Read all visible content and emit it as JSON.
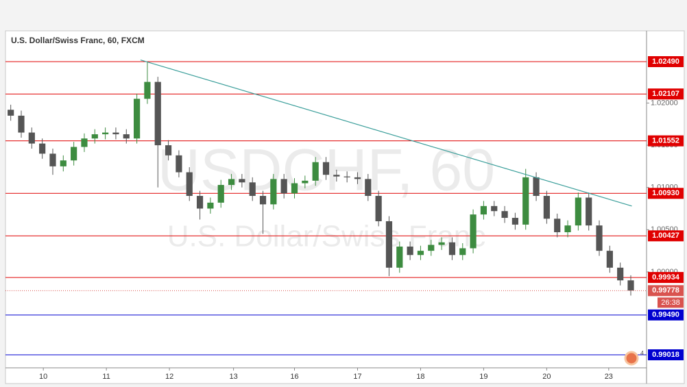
{
  "chart_data": {
    "type": "candlestick",
    "title": "U.S. Dollar/Swiss Franc, 60, FXCM",
    "watermark": [
      "USDCHF, 60",
      "U.S. Dollar/Swiss Franc"
    ],
    "up_color": "#3d8c40",
    "down_color": "#555555",
    "xlim": [
      0,
      61
    ],
    "xticks": [
      {
        "value": 3.6,
        "label": "10"
      },
      {
        "value": 9.6,
        "label": "11"
      },
      {
        "value": 15.6,
        "label": "12"
      },
      {
        "value": 21.7,
        "label": "13"
      },
      {
        "value": 27.5,
        "label": "16"
      },
      {
        "value": 33.5,
        "label": "17"
      },
      {
        "value": 39.5,
        "label": "18"
      },
      {
        "value": 45.5,
        "label": "19"
      },
      {
        "value": 51.5,
        "label": "20"
      },
      {
        "value": 57.4,
        "label": "23"
      }
    ],
    "ylim": [
      0.98864,
      1.02855
    ],
    "yticks": [
      {
        "value": 1.02,
        "label": "1.02000"
      },
      {
        "value": 1.015,
        "label": "1.01500"
      },
      {
        "value": 1.01,
        "label": "1.01000"
      },
      {
        "value": 1.005,
        "label": "1.00500"
      },
      {
        "value": 1.0,
        "label": "1.00000"
      }
    ],
    "open": [
      1.0192,
      1.0185,
      1.0165,
      1.0152,
      1.014,
      1.0125,
      1.0132,
      1.0148,
      1.0158,
      1.0163,
      1.0165,
      1.0163,
      1.0158,
      1.0205,
      1.0225,
      1.015,
      1.0138,
      1.0118,
      1.009,
      1.0075,
      1.0082,
      1.0103,
      1.011,
      1.0106,
      1.009,
      1.008,
      1.011,
      1.0093,
      1.0105,
      1.0108,
      1.013,
      1.0115,
      1.0113,
      1.0112,
      1.011,
      1.009,
      1.006,
      1.0005,
      1.003,
      1.002,
      1.0025,
      1.0032,
      1.0035,
      1.002,
      1.0028,
      1.0068,
      1.0078,
      1.0072,
      1.0064,
      1.0056,
      1.0112,
      1.009,
      1.0063,
      1.0047,
      1.0055,
      1.0088,
      1.0055,
      1.0025,
      1.0005,
      0.999
    ],
    "high": [
      1.0198,
      1.0191,
      1.0171,
      1.0158,
      1.0146,
      1.0138,
      1.0154,
      1.0164,
      1.0169,
      1.0171,
      1.0171,
      1.0169,
      1.0211,
      1.0249,
      1.0231,
      1.0156,
      1.0144,
      1.0124,
      1.0096,
      1.0088,
      1.0109,
      1.0116,
      1.0116,
      1.0112,
      1.0096,
      1.0116,
      1.0116,
      1.0111,
      1.0114,
      1.0136,
      1.0136,
      1.0121,
      1.0119,
      1.0118,
      1.0116,
      1.0096,
      1.0066,
      1.0036,
      1.0036,
      1.0031,
      1.0038,
      1.0041,
      1.0041,
      1.0034,
      1.0074,
      1.0084,
      1.0084,
      1.0078,
      1.007,
      1.0122,
      1.0118,
      1.0096,
      1.0069,
      1.0061,
      1.0094,
      1.0094,
      1.0061,
      1.0031,
      1.0011,
      0.9996
    ],
    "low": [
      1.0179,
      1.0159,
      1.0146,
      1.0134,
      1.0115,
      1.0119,
      1.0126,
      1.0142,
      1.0152,
      1.0157,
      1.0157,
      1.0152,
      1.0152,
      1.0199,
      1.01,
      1.0132,
      1.0112,
      1.0084,
      1.0062,
      1.0069,
      1.0076,
      1.0097,
      1.01,
      1.0084,
      1.0045,
      1.0074,
      1.0087,
      1.0087,
      1.0099,
      1.0102,
      1.0109,
      1.0107,
      1.0106,
      1.0104,
      1.0084,
      1.0054,
      0.9995,
      0.9999,
      1.0014,
      1.0014,
      1.0019,
      1.0026,
      1.0014,
      1.0014,
      1.0022,
      1.0062,
      1.0066,
      1.0058,
      1.005,
      1.005,
      1.0084,
      1.0057,
      1.0041,
      1.0041,
      1.0049,
      1.0049,
      1.0019,
      0.9999,
      0.9984,
      0.9972
    ],
    "close": [
      1.0185,
      1.0165,
      1.0152,
      1.014,
      1.0125,
      1.0132,
      1.0148,
      1.0158,
      1.0163,
      1.0165,
      1.0163,
      1.0158,
      1.0205,
      1.0225,
      1.015,
      1.0138,
      1.0118,
      1.009,
      1.0075,
      1.0082,
      1.0103,
      1.011,
      1.0106,
      1.009,
      1.008,
      1.011,
      1.0093,
      1.0105,
      1.0108,
      1.013,
      1.0115,
      1.0113,
      1.0112,
      1.011,
      1.009,
      1.006,
      1.0005,
      1.003,
      1.002,
      1.0025,
      1.0032,
      1.0035,
      1.002,
      1.0028,
      1.0068,
      1.0078,
      1.0072,
      1.0064,
      1.0056,
      1.0112,
      1.009,
      1.0063,
      1.0047,
      1.0055,
      1.0088,
      1.0055,
      1.0025,
      1.0005,
      0.999,
      0.9978
    ],
    "trendline": {
      "color": "#3a9e9a",
      "x": [
        12.85,
        59.6
      ],
      "y": [
        1.0251,
        1.0078
      ]
    },
    "levels": [
      {
        "value": 1.0249,
        "label": "1.02490",
        "color": "#e00000"
      },
      {
        "value": 1.02107,
        "label": "1.02107",
        "color": "#e00000"
      },
      {
        "value": 1.01552,
        "label": "1.01552",
        "color": "#e00000"
      },
      {
        "value": 1.0093,
        "label": "1.00930",
        "color": "#e00000"
      },
      {
        "value": 1.00427,
        "label": "1.00427",
        "color": "#e00000"
      },
      {
        "value": 0.99934,
        "label": "0.99934",
        "color": "#e00000"
      },
      {
        "value": 0.9949,
        "label": "0.99490",
        "color": "#0000d0"
      },
      {
        "value": 0.99018,
        "label": "0.99018",
        "color": "#0000d0"
      }
    ],
    "current_price": {
      "value": 0.99778,
      "label": "0.99778",
      "color": "#d9534f"
    },
    "countdown": "26:38",
    "badge": "4"
  }
}
